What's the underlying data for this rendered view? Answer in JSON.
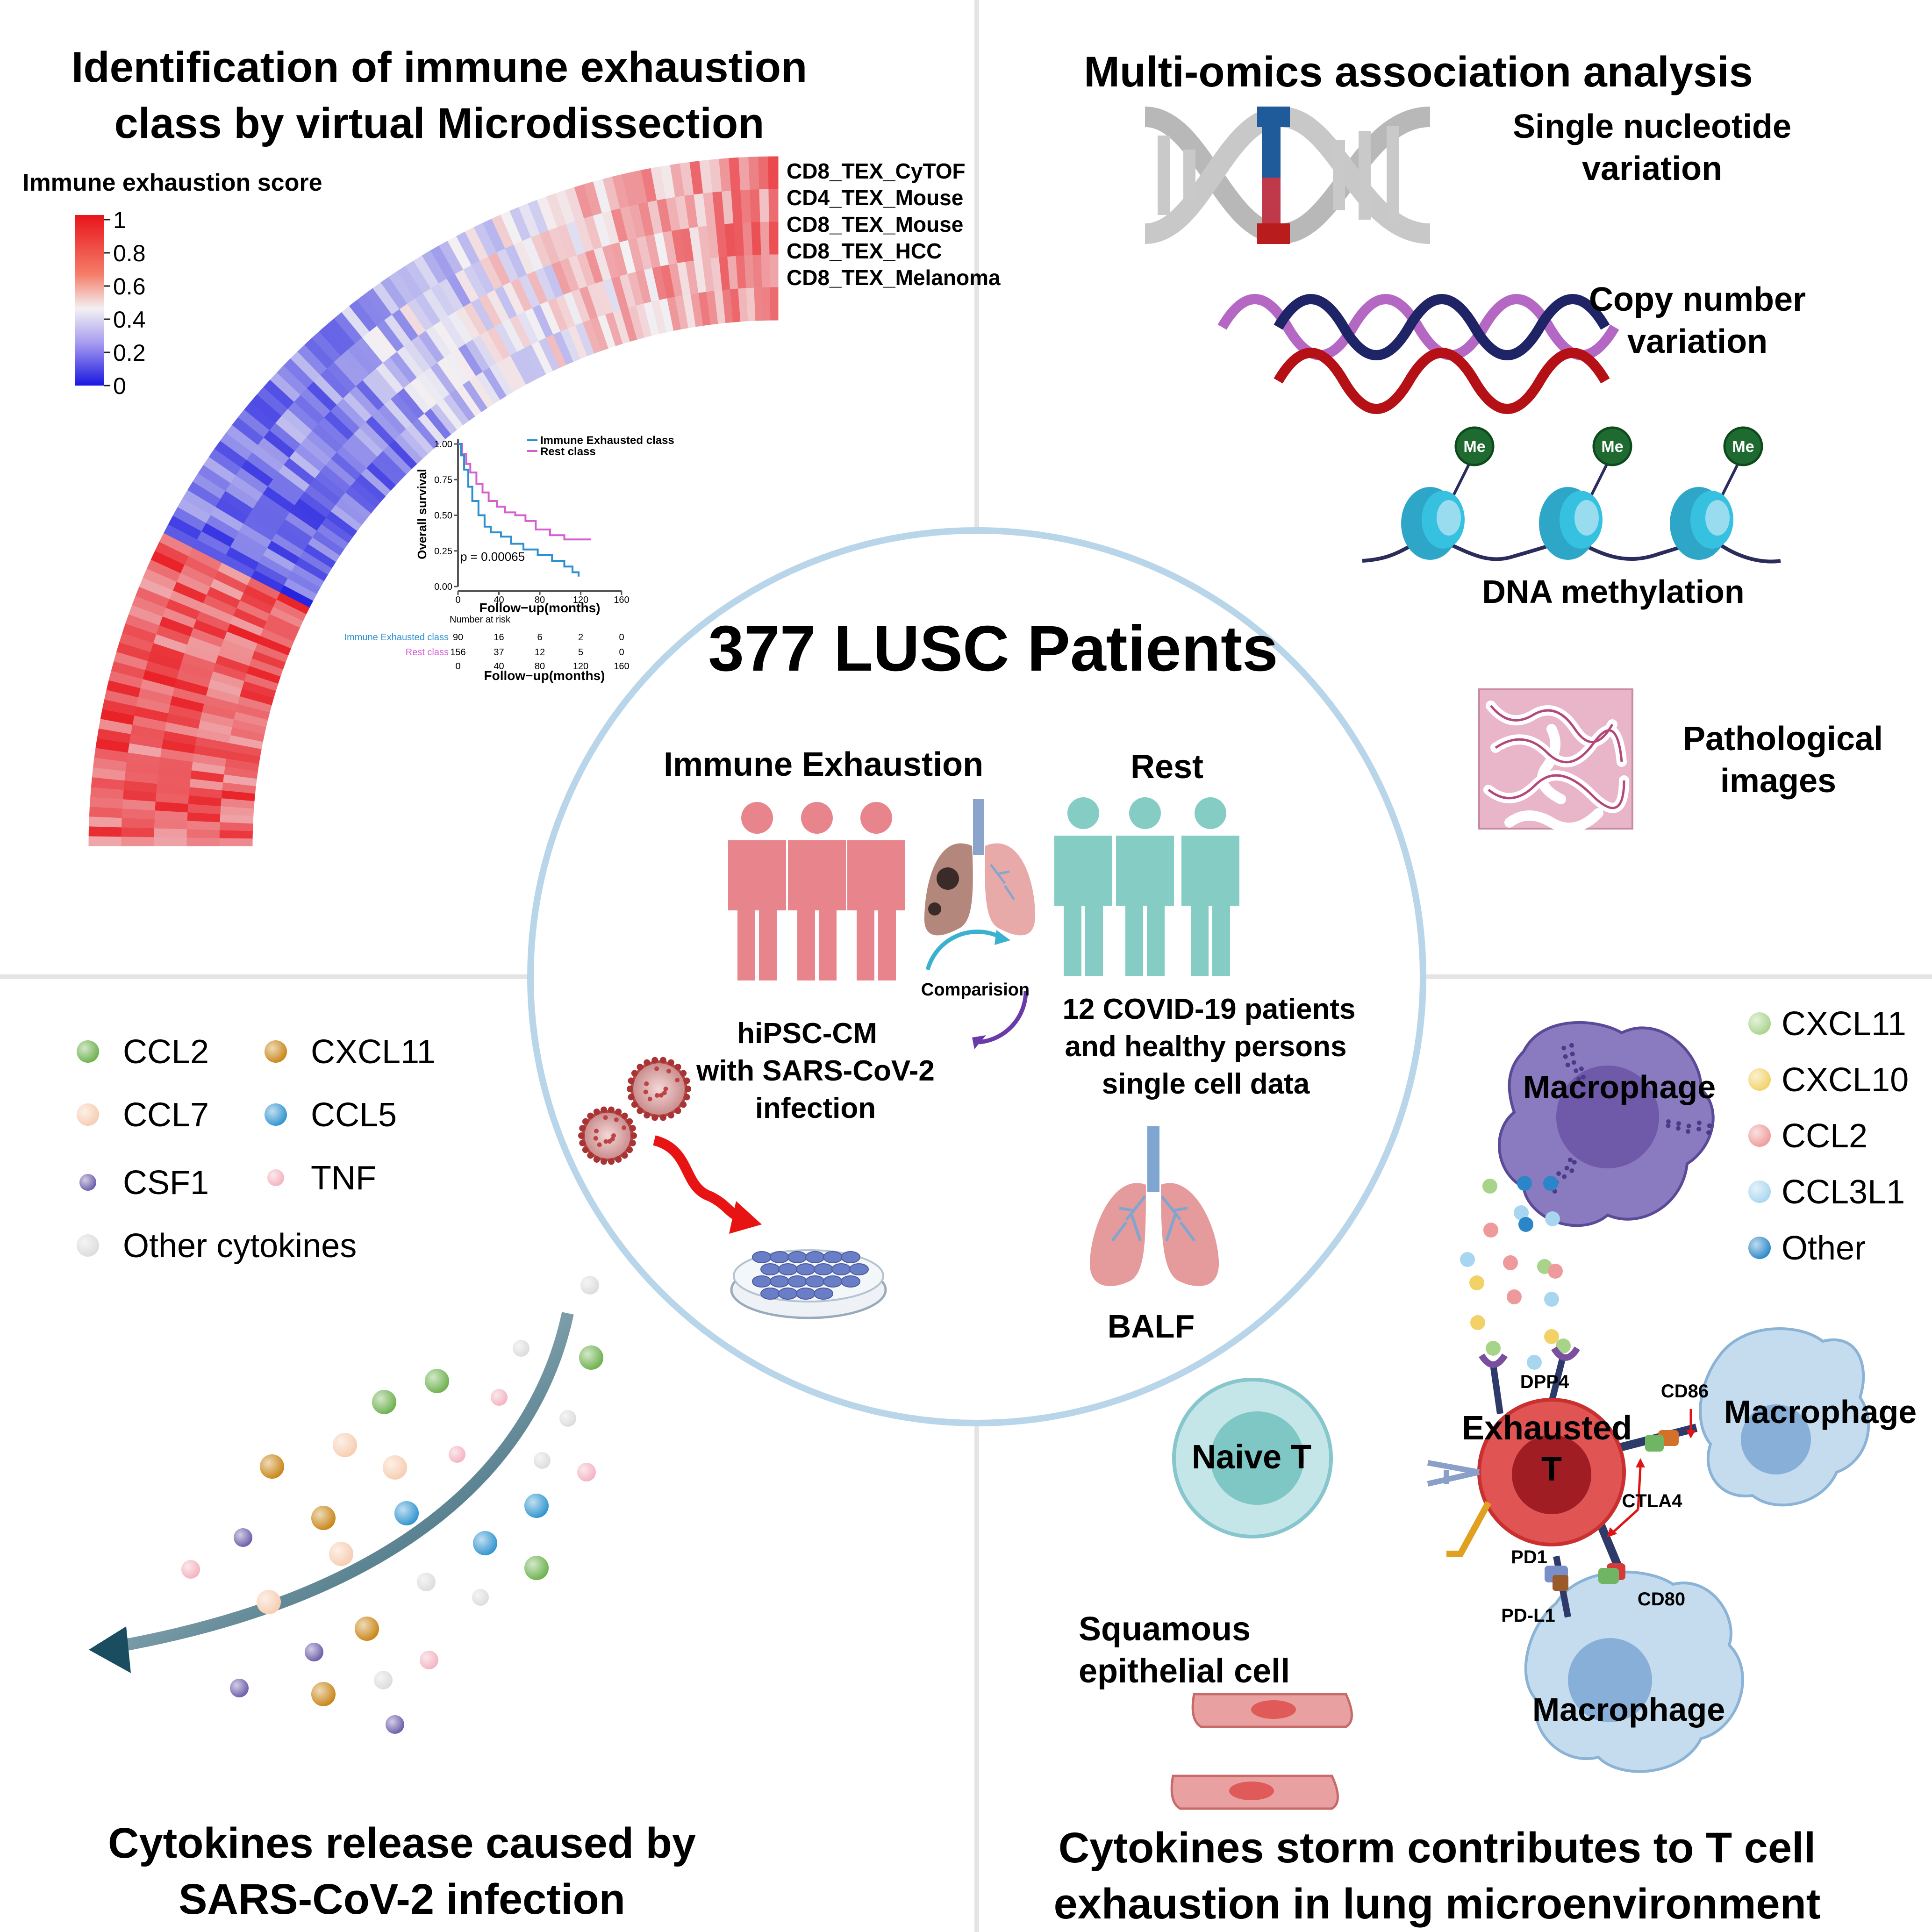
{
  "titles": {
    "top_left_1": "Identification of immune exhaustion",
    "top_left_2": "class by virtual Microdissection",
    "top_right": "Multi-omics association analysis",
    "bottom_left_1": "Cytokines release caused by",
    "bottom_left_2": "SARS-CoV-2 infection",
    "bottom_right_1": "Cytokines storm contributes to T cell",
    "bottom_right_2": "exhaustion in lung microenvironment"
  },
  "heatmap": {
    "legend_title": "Immune exhaustion score",
    "scale_ticks": [
      "1",
      "0.8",
      "0.6",
      "0.4",
      "0.2",
      "0"
    ],
    "row_labels": [
      "CD8_TEX_CyTOF",
      "CD4_TEX_Mouse",
      "CD8_TEX_Mouse",
      "CD8_TEX_HCC",
      "CD8_TEX_Melanoma"
    ],
    "colors": {
      "high": "#e8141a",
      "mid": "#f3f1f3",
      "low": "#1a17e0"
    }
  },
  "km_plot": {
    "ylabel": "Overall survival",
    "xlabel": "Follow−up(months)",
    "y_ticks": [
      "1.00",
      "0.75",
      "0.50",
      "0.25",
      "0.00"
    ],
    "x_ticks": [
      "0",
      "40",
      "80",
      "120",
      "160"
    ],
    "legend": [
      "Immune Exhausted class",
      "Rest class"
    ],
    "pvalue": "p = 0.00065",
    "risk_title": "Number at risk",
    "risk_rows": [
      {
        "label": "Immune Exhausted class",
        "values": [
          "90",
          "16",
          "6",
          "2",
          "0"
        ],
        "color": "#2b8fd0"
      },
      {
        "label": "Rest class",
        "values": [
          "156",
          "37",
          "12",
          "5",
          "0"
        ],
        "color": "#d55fd0"
      }
    ],
    "colors": {
      "exhausted": "#2b8fd0",
      "rest": "#d55fd0"
    }
  },
  "omics": {
    "snv": [
      "Single nucleotide",
      "variation"
    ],
    "cnv": [
      "Copy number",
      "variation"
    ],
    "methylation": "DNA methylation",
    "methyl_tag": "Me",
    "pathology": [
      "Pathological",
      "images"
    ]
  },
  "center": {
    "title": "377 LUSC Patients",
    "group_left": "Immune Exhaustion",
    "group_right": "Rest",
    "comparison": "Comparision",
    "hipsc": [
      "hiPSC-CM",
      "with SARS-CoV-2",
      "infection"
    ],
    "covid": [
      "12 COVID-19 patients",
      "and healthy persons",
      "single cell data"
    ],
    "balf": "BALF",
    "colors": {
      "exhausted": "#e8858c",
      "rest": "#84ccc4",
      "ring": "#b9d5ea"
    }
  },
  "cytokine_legend": [
    {
      "name": "CCL2",
      "color": "#6bb04c"
    },
    {
      "name": "CXCL11",
      "color": "#c88414"
    },
    {
      "name": "CCL7",
      "color": "#f6cdb0"
    },
    {
      "name": "CCL5",
      "color": "#2e93cf"
    },
    {
      "name": "CSF1",
      "color": "#6a5aa8"
    },
    {
      "name": "TNF",
      "color": "#f3b2c0"
    },
    {
      "name": "Other cytokines",
      "color": "#dcdcdc"
    }
  ],
  "storm": {
    "legend": [
      {
        "name": "CXCL11",
        "color": "#a8d48a"
      },
      {
        "name": "CXCL10",
        "color": "#f2d166"
      },
      {
        "name": "CCL2",
        "color": "#ef9a9a"
      },
      {
        "name": "CCL3L1",
        "color": "#a8d6f0"
      },
      {
        "name": "Other",
        "color": "#2a86c8"
      }
    ],
    "cells": {
      "macrophage": "Macrophage",
      "exhausted_t": [
        "Exhausted",
        "T"
      ],
      "naive_t": "Naive T",
      "squamous": [
        "Squamous",
        "epithelial cell"
      ]
    },
    "receptors": [
      "DPP4",
      "CD86",
      "CTLA4",
      "PD1",
      "PD-L1",
      "CD80"
    ]
  }
}
